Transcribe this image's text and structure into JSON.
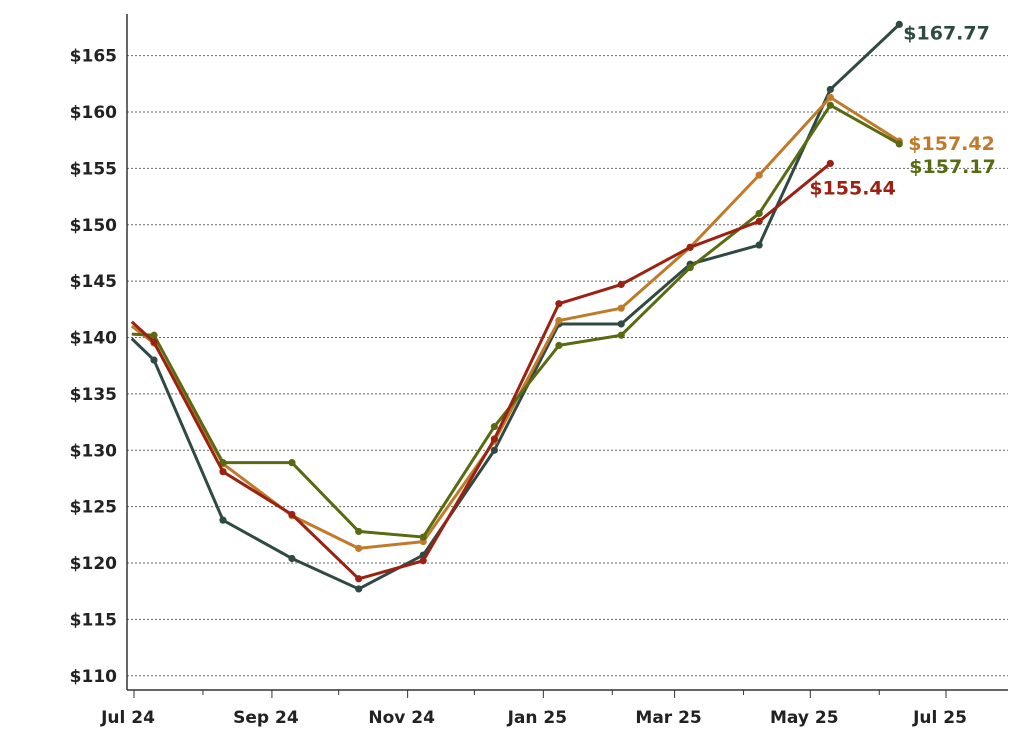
{
  "chart_data": {
    "type": "line",
    "x_tick_labels": [
      "Jul 24",
      "Sep 24",
      "Nov 24",
      "Jan 25",
      "Mar 25",
      "May 25",
      "Jul 25"
    ],
    "y_tick_labels": [
      "$110",
      "$115",
      "$120",
      "$125",
      "$130",
      "$135",
      "$140",
      "$145",
      "$150",
      "$155",
      "$160",
      "$165"
    ],
    "ylim": [
      109,
      169
    ],
    "grid": "horizontal dotted",
    "series": [
      {
        "color": "#2f4a42",
        "end_label": "$167.77",
        "points": [
          {
            "x": "2024-06-30",
            "y": 139.9
          },
          {
            "x": "2024-07-10",
            "y": 138.0
          },
          {
            "x": "2024-08-10",
            "y": 123.8
          },
          {
            "x": "2024-09-10",
            "y": 120.4
          },
          {
            "x": "2024-10-10",
            "y": 117.7
          },
          {
            "x": "2024-11-08",
            "y": 120.7
          },
          {
            "x": "2024-12-10",
            "y": 130.0
          },
          {
            "x": "2025-01-08",
            "y": 141.2
          },
          {
            "x": "2025-02-05",
            "y": 141.2
          },
          {
            "x": "2025-03-08",
            "y": 146.5
          },
          {
            "x": "2025-04-08",
            "y": 148.2
          },
          {
            "x": "2025-05-10",
            "y": 162.0
          },
          {
            "x": "2025-06-10",
            "y": 167.77
          }
        ]
      },
      {
        "color": "#c17a2a",
        "end_label": "$157.42",
        "points": [
          {
            "x": "2024-06-30",
            "y": 141.0
          },
          {
            "x": "2024-07-10",
            "y": 139.5
          },
          {
            "x": "2024-08-10",
            "y": 128.8
          },
          {
            "x": "2024-09-10",
            "y": 124.2
          },
          {
            "x": "2024-10-10",
            "y": 121.3
          },
          {
            "x": "2024-11-08",
            "y": 121.9
          },
          {
            "x": "2024-12-10",
            "y": 130.8
          },
          {
            "x": "2025-01-08",
            "y": 141.5
          },
          {
            "x": "2025-02-05",
            "y": 142.6
          },
          {
            "x": "2025-03-08",
            "y": 148.0
          },
          {
            "x": "2025-04-08",
            "y": 154.4
          },
          {
            "x": "2025-05-10",
            "y": 161.3
          },
          {
            "x": "2025-06-10",
            "y": 157.42
          }
        ]
      },
      {
        "color": "#596b12",
        "end_label": "$157.17",
        "points": [
          {
            "x": "2024-06-30",
            "y": 140.3
          },
          {
            "x": "2024-07-10",
            "y": 140.2
          },
          {
            "x": "2024-08-10",
            "y": 128.9
          },
          {
            "x": "2024-09-10",
            "y": 128.9
          },
          {
            "x": "2024-10-10",
            "y": 122.8
          },
          {
            "x": "2024-11-08",
            "y": 122.3
          },
          {
            "x": "2024-12-10",
            "y": 132.1
          },
          {
            "x": "2025-01-08",
            "y": 139.3
          },
          {
            "x": "2025-02-05",
            "y": 140.2
          },
          {
            "x": "2025-03-08",
            "y": 146.2
          },
          {
            "x": "2025-04-08",
            "y": 151.0
          },
          {
            "x": "2025-05-10",
            "y": 160.6
          },
          {
            "x": "2025-06-10",
            "y": 157.17
          }
        ]
      },
      {
        "color": "#9b2212",
        "end_label": "$155.44",
        "points": [
          {
            "x": "2024-06-30",
            "y": 141.4
          },
          {
            "x": "2024-07-10",
            "y": 139.6
          },
          {
            "x": "2024-08-10",
            "y": 128.1
          },
          {
            "x": "2024-09-10",
            "y": 124.3
          },
          {
            "x": "2024-10-10",
            "y": 118.6
          },
          {
            "x": "2024-11-08",
            "y": 120.2
          },
          {
            "x": "2024-12-10",
            "y": 131.0
          },
          {
            "x": "2025-01-08",
            "y": 143.0
          },
          {
            "x": "2025-02-05",
            "y": 144.7
          },
          {
            "x": "2025-03-08",
            "y": 148.0
          },
          {
            "x": "2025-04-08",
            "y": 150.3
          },
          {
            "x": "2025-05-10",
            "y": 155.44
          }
        ]
      }
    ]
  }
}
